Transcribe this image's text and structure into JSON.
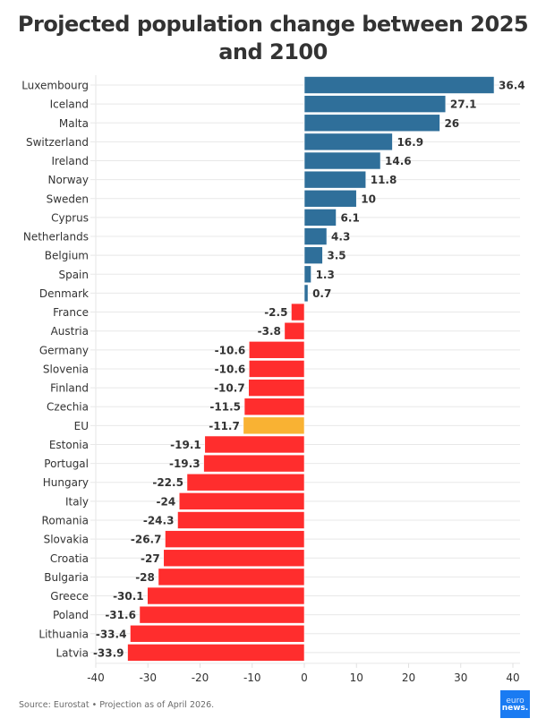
{
  "chart_data": {
    "type": "bar",
    "orientation": "horizontal",
    "title": "Projected population change between 2025 and 2100",
    "xlabel": "",
    "ylabel": "",
    "xlim": [
      -40,
      40
    ],
    "x_ticks": [
      -40,
      -30,
      -20,
      -10,
      0,
      10,
      20,
      30,
      40
    ],
    "grid": true,
    "categories": [
      "Luxembourg",
      "Iceland",
      "Malta",
      "Switzerland",
      "Ireland",
      "Norway",
      "Sweden",
      "Cyprus",
      "Netherlands",
      "Belgium",
      "Spain",
      "Denmark",
      "France",
      "Austria",
      "Germany",
      "Slovenia",
      "Finland",
      "Czechia",
      "EU",
      "Estonia",
      "Portugal",
      "Hungary",
      "Italy",
      "Romania",
      "Slovakia",
      "Croatia",
      "Bulgaria",
      "Greece",
      "Poland",
      "Lithuania",
      "Latvia"
    ],
    "values": [
      36.4,
      27.1,
      26,
      16.9,
      14.6,
      11.8,
      10,
      6.1,
      4.3,
      3.5,
      1.3,
      0.7,
      -2.5,
      -3.8,
      -10.6,
      -10.6,
      -10.7,
      -11.5,
      -11.7,
      -19.1,
      -19.3,
      -22.5,
      -24,
      -24.3,
      -26.7,
      -27,
      -28,
      -30.1,
      -31.6,
      -33.4,
      -33.9
    ],
    "colors": {
      "positive": "#2f6f9a",
      "negative": "#ff2d2d",
      "highlight": "#f9b233",
      "highlight_category": "EU"
    }
  },
  "footer": {
    "source": "Source: Eurostat • Projection as of April 2026.",
    "logo_line1": "euro",
    "logo_line2": "news."
  }
}
